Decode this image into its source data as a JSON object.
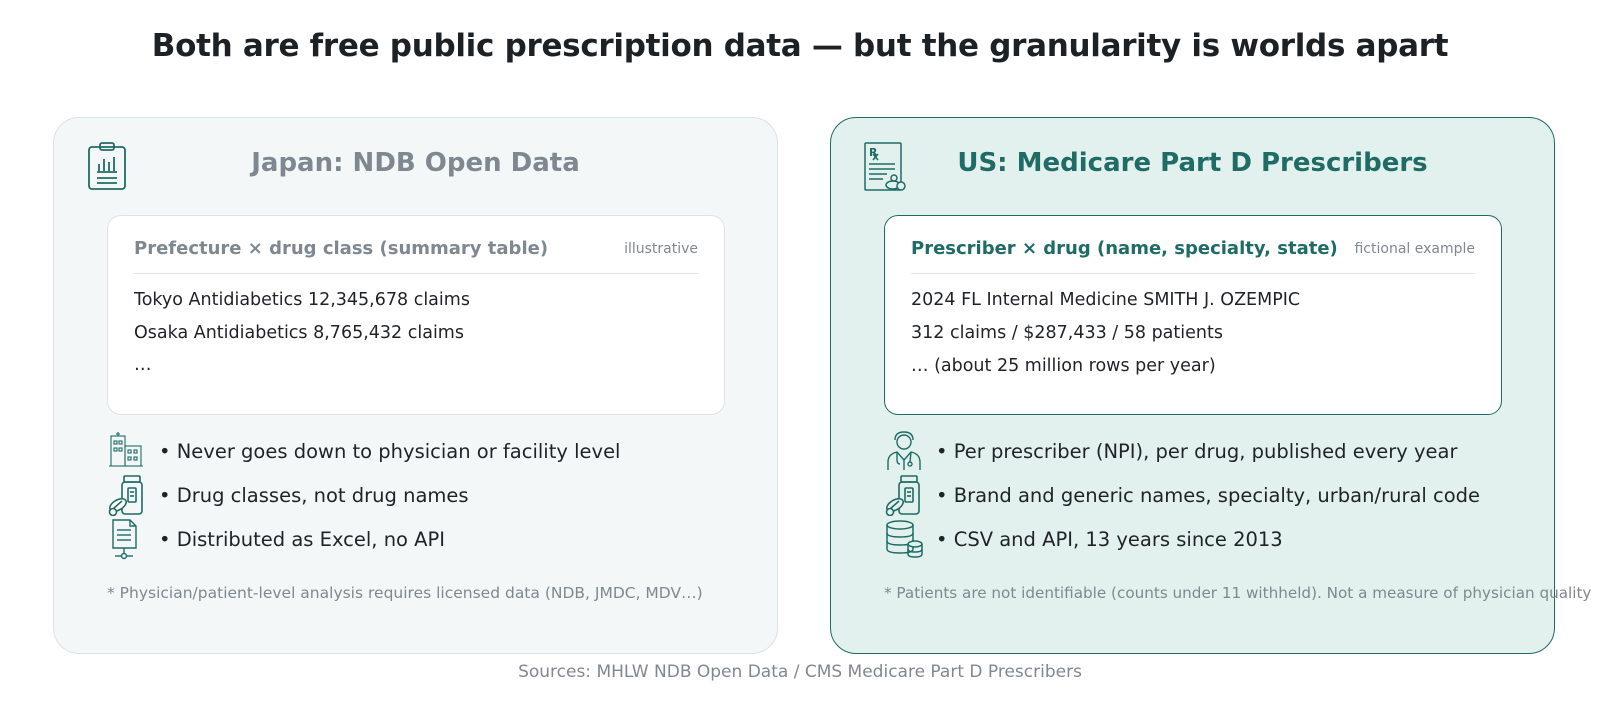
{
  "title": "Both are free public prescription data — but the granularity is worlds apart",
  "colors": {
    "accent": "#1f6b66",
    "muted": "#7f8891",
    "panel_jp_bg": "#f3f7f8",
    "panel_us_bg": "#e3f1ee"
  },
  "japan": {
    "icon": "clipboard-chart-icon",
    "heading": "Japan: NDB Open Data",
    "card": {
      "title": "Prefecture × drug class (summary table)",
      "note": "illustrative",
      "lines": [
        "Tokyo Antidiabetics 12,345,678 claims",
        "Osaka Antidiabetics 8,765,432 claims",
        "…"
      ]
    },
    "bullets": [
      {
        "icon": "hospital-building-icon",
        "text": "• Never goes down to physician or facility level"
      },
      {
        "icon": "pill-bottle-icon",
        "text": "• Drug classes, not drug names"
      },
      {
        "icon": "document-network-icon",
        "text": "• Distributed as Excel, no API"
      }
    ],
    "footnote": "* Physician/patient-level analysis requires licensed data (NDB, JMDC, MDV…)"
  },
  "us": {
    "icon": "prescription-icon",
    "heading": "US: Medicare Part D Prescribers",
    "card": {
      "title": "Prescriber × drug (name, specialty, state)",
      "note": "fictional example",
      "lines": [
        "2024 FL Internal Medicine SMITH J. OZEMPIC",
        "312 claims / $287,433 / 58 patients",
        "… (about 25 million rows per year)"
      ]
    },
    "bullets": [
      {
        "icon": "doctor-icon",
        "text": "• Per prescriber (NPI), per drug, published every year"
      },
      {
        "icon": "pill-bottle-icon",
        "text": "• Brand and generic names, specialty, urban/rural code"
      },
      {
        "icon": "database-icon",
        "text": "• CSV and API, 13 years since 2013"
      }
    ],
    "footnote": "* Patients are not identifiable (counts under 11 withheld). Not a measure of physician quality"
  },
  "sources": "Sources: MHLW NDB Open Data / CMS Medicare Part D Prescribers"
}
